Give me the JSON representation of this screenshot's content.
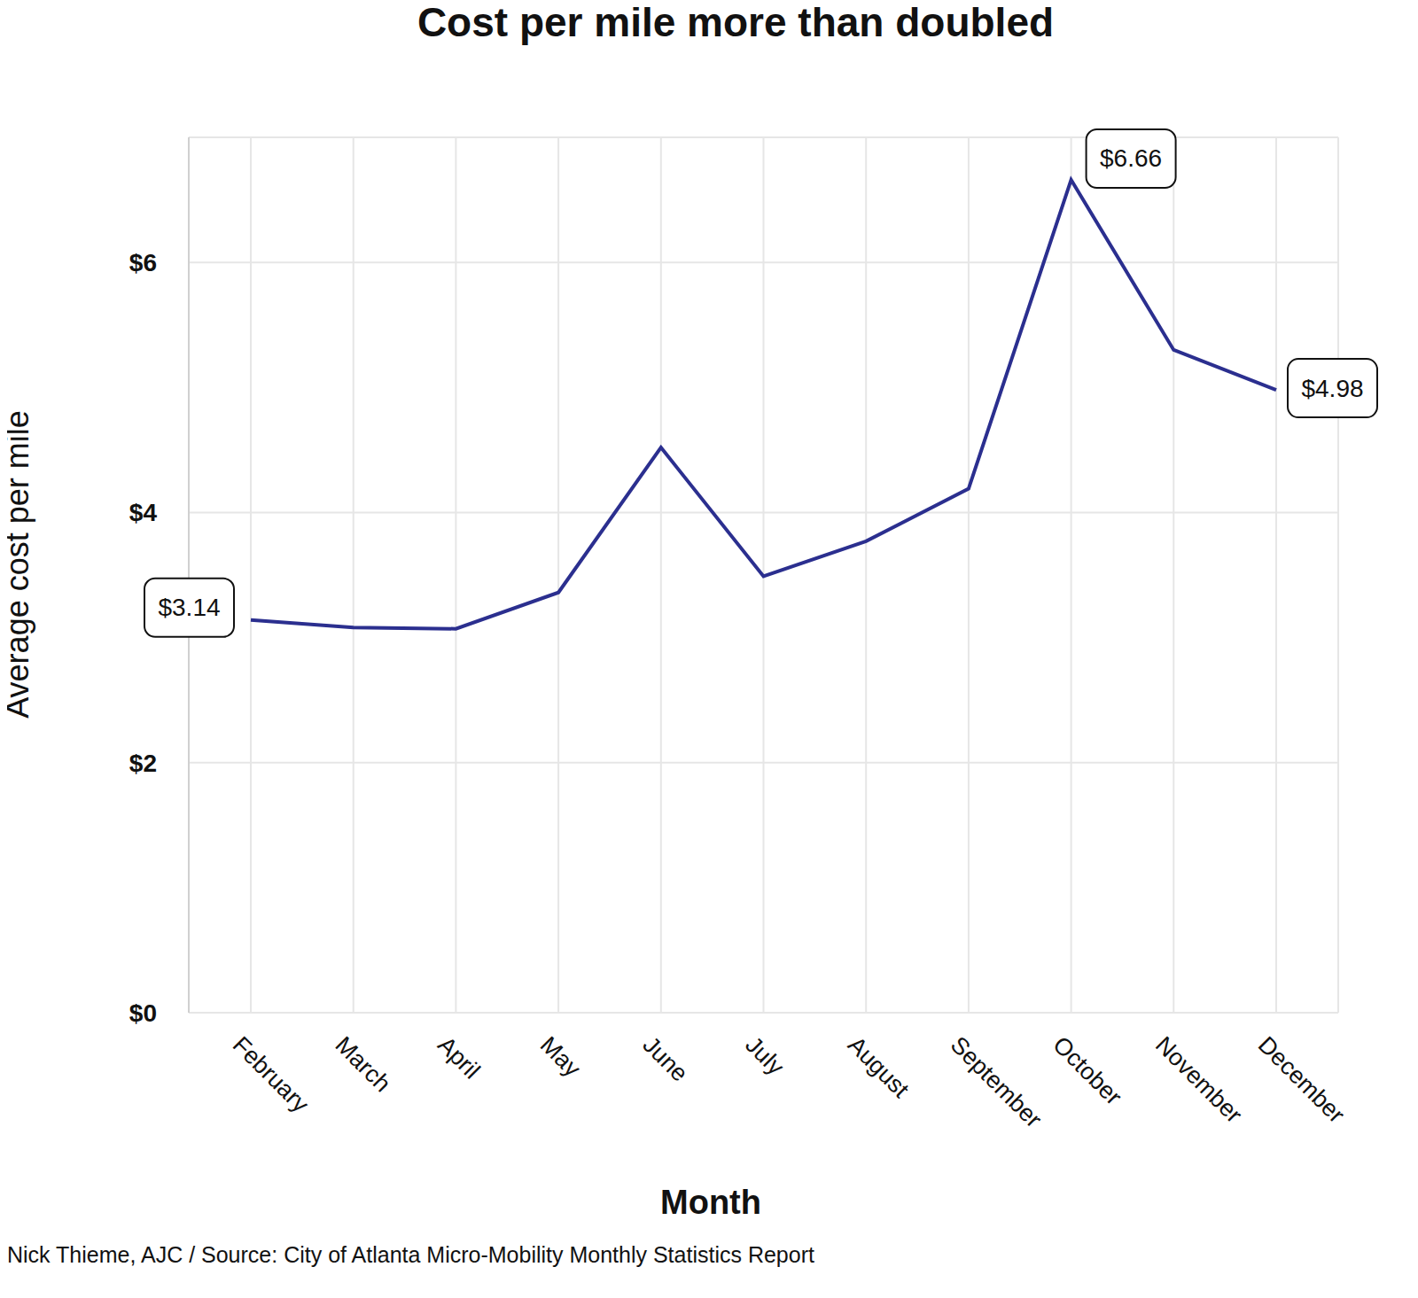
{
  "chart_data": {
    "type": "line",
    "title": "Cost per mile more than doubled",
    "x_label": "Month",
    "y_label": "Average cost per mile",
    "source": "Nick Thieme, AJC / Source: City of Atlanta Micro-Mobility Monthly Statistics Report",
    "categories": [
      "February",
      "March",
      "April",
      "May",
      "June",
      "July",
      "August",
      "September",
      "October",
      "November",
      "December"
    ],
    "values": [
      3.14,
      3.08,
      3.07,
      3.36,
      4.52,
      3.49,
      3.77,
      4.19,
      6.66,
      5.3,
      4.98
    ],
    "value_labels": [
      "$3.14",
      null,
      null,
      null,
      null,
      null,
      null,
      null,
      "$6.66",
      null,
      "$4.98"
    ],
    "color": "#2b2f8f",
    "ylim": [
      0,
      7
    ],
    "yticks": [
      {
        "value": 0,
        "label": "$0"
      },
      {
        "value": 2,
        "label": "$2"
      },
      {
        "value": 4,
        "label": "$4"
      },
      {
        "value": 6,
        "label": "$6"
      }
    ],
    "grid": true
  }
}
